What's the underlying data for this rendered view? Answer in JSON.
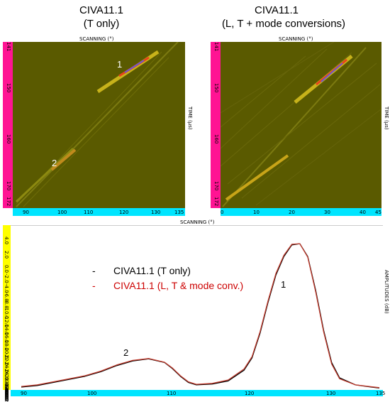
{
  "titles": {
    "left_line1": "CIVA11.1",
    "left_line2": "(T only)",
    "right_line1": "CIVA11.1",
    "right_line2": "(L, T + mode conversions)"
  },
  "bscan_left": {
    "top_axis_label": "SCANNING (°)",
    "right_axis_label": "TIME (µs)",
    "y_ticks": [
      "141",
      "150",
      "160",
      "170",
      "172"
    ],
    "x_ticks": [
      "90",
      "100",
      "110",
      "120",
      "130",
      "135"
    ],
    "marker_1": "1",
    "marker_2": "2"
  },
  "bscan_right": {
    "top_axis_label": "SCANNING (°)",
    "right_axis_label": "TIME (µs)",
    "y_ticks": [
      "141",
      "150",
      "160",
      "170",
      "172"
    ],
    "x_ticks": [
      "0",
      "10",
      "20",
      "30",
      "40",
      "45"
    ]
  },
  "echodynamic": {
    "top_axis_label": "SCANNING (°)",
    "right_axis_label": "AMPLITUDES (dB)",
    "y_ticks": [
      "4.0",
      "2.0",
      "0.0",
      "-2.0",
      "-4.0",
      "-6.0",
      "-8.0",
      "-10.0",
      "-12.0",
      "-14.0",
      "-16.0",
      "-18.0",
      "-20.0",
      "-22.0",
      "-24.0",
      "-26.0",
      "-28.0",
      "-30.0",
      "-32.0",
      "-34.0",
      "-36.0",
      "-38.0",
      "-40.0",
      "-42.0",
      "-44.0",
      "-46.0",
      "-48.0",
      "-49.2"
    ],
    "x_ticks": [
      "90",
      "100",
      "110",
      "120",
      "130",
      "135"
    ],
    "peak_label_1": "1",
    "peak_label_2": "2",
    "legend": [
      {
        "dash": "-",
        "label": "CIVA11.1 (T only)",
        "color": "#000000"
      },
      {
        "dash": "-",
        "label": "CIVA11.1 (L, T & mode conv.)",
        "color": "#cc0000"
      }
    ]
  },
  "colors": {
    "bscan_bg": "#5a5a00",
    "pink_axis": "#ff1493",
    "cyan_axis": "#00e5ff",
    "yellow_axis": "#ffff00",
    "black_curve": "#000000",
    "red_curve": "#c0392b"
  },
  "chart_data": {
    "type": "line",
    "xlabel": "SCANNING (°)",
    "ylabel": "AMPLITUDES (dB)",
    "xlim": [
      90,
      135
    ],
    "ylim": [
      -49.2,
      4.0
    ],
    "series": [
      {
        "name": "CIVA11.1 (T only)",
        "color": "#000000",
        "x": [
          90,
          92,
          95,
          98,
          100,
          102,
          104,
          106,
          108,
          109,
          110,
          111,
          112,
          114,
          116,
          118,
          119,
          120,
          121,
          122,
          123,
          124,
          125,
          126,
          127,
          128,
          129,
          130,
          132,
          134,
          135
        ],
        "y": [
          -48.5,
          -48.0,
          -46.5,
          -45.0,
          -43.5,
          -41.5,
          -40.0,
          -39.3,
          -40.5,
          -42.5,
          -45.0,
          -47.0,
          -47.8,
          -47.5,
          -46.5,
          -43.0,
          -39.0,
          -31.0,
          -21.0,
          -12.0,
          -6.0,
          -2.2,
          -1.8,
          -6.0,
          -17.0,
          -30.0,
          -40.5,
          -45.5,
          -47.8,
          -48.5,
          -48.8
        ]
      },
      {
        "name": "CIVA11.1 (L, T & mode conv.)",
        "color": "#c0392b",
        "x": [
          90,
          92,
          95,
          98,
          100,
          102,
          104,
          106,
          108,
          109,
          110,
          111,
          112,
          114,
          116,
          118,
          119,
          120,
          121,
          122,
          123,
          124,
          125,
          126,
          127,
          128,
          129,
          130,
          132,
          134,
          135
        ],
        "y": [
          -48.3,
          -47.8,
          -46.3,
          -44.8,
          -43.3,
          -41.3,
          -39.8,
          -39.2,
          -40.4,
          -42.3,
          -44.8,
          -46.8,
          -47.6,
          -47.3,
          -46.2,
          -42.6,
          -38.6,
          -30.5,
          -20.5,
          -11.5,
          -5.6,
          -2.0,
          -1.8,
          -6.2,
          -17.5,
          -30.5,
          -41.0,
          -45.8,
          -47.8,
          -48.4,
          -48.7
        ]
      }
    ]
  }
}
